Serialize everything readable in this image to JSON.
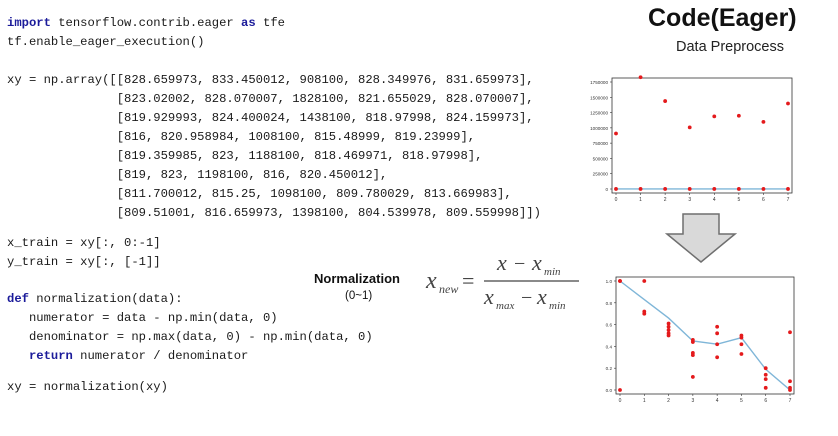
{
  "header": {
    "title": "Code(Eager)",
    "subtitle": "Data Preprocess"
  },
  "code": {
    "import_kw": "import",
    "import_mod": " tensorflow.contrib.eager ",
    "as_kw": "as",
    "import_alias": " tfe",
    "enable_line": "tf.enable_eager_execution()",
    "xy_lines": [
      "xy = np.array([[828.659973, 833.450012, 908100, 828.349976, 831.659973],",
      "               [823.02002, 828.070007, 1828100, 821.655029, 828.070007],",
      "               [819.929993, 824.400024, 1438100, 818.97998, 824.159973],",
      "               [816, 820.958984, 1008100, 815.48999, 819.23999],",
      "               [819.359985, 823, 1188100, 818.469971, 818.97998],",
      "               [819, 823, 1198100, 816, 820.450012],",
      "               [811.700012, 815.25, 1098100, 809.780029, 813.669983],",
      "               [809.51001, 816.659973, 1398100, 804.539978, 809.559998]])"
    ],
    "x_train": "x_train = xy[:, 0:-1]",
    "y_train": "y_train = xy[:, [-1]]",
    "def_kw": "def",
    "def_sig": " normalization(data):",
    "numerator": "   numerator = data - np.min(data, 0)",
    "denominator": "   denominator = np.max(data, 0) - np.min(data, 0)",
    "return_kw": "   return",
    "return_rest": " numerator / denominator",
    "call_line": "xy = normalization(xy)"
  },
  "normalization": {
    "label": "Normalization",
    "range": "(0~1)"
  },
  "formula": {
    "lhs_var": "x",
    "lhs_sub": "new",
    "num_var": "x",
    "minus": "−",
    "num_x2": "x",
    "sub_min": "min",
    "den_x": "x",
    "sub_max": "max"
  },
  "colors": {
    "keyword": "#1b1b9a",
    "points": "#e41a1c",
    "line": "#7fb6d8",
    "arrow_fill": "#d9d9d9",
    "arrow_stroke": "#6f6f6f"
  },
  "icons": {
    "arrow": "down-arrow-icon"
  },
  "chart_data": [
    {
      "type": "scatter",
      "title": "",
      "xlabel": "",
      "ylabel": "",
      "xlim": [
        0,
        7
      ],
      "ylim": [
        0,
        1750000
      ],
      "x_ticks": [
        "0",
        "1",
        "2",
        "3",
        "4",
        "5",
        "6",
        "7"
      ],
      "y_ticks": [
        "0",
        "250000",
        "500000",
        "750000",
        "1000000",
        "1250000",
        "1500000",
        "1750000"
      ],
      "series": [
        {
          "values": [
            908100,
            1828100,
            1438100,
            1008100,
            1188100,
            1198100,
            1098100,
            1398100
          ]
        },
        {
          "values": [
            828.66,
            833.45,
            828.35,
            831.66,
            823.02,
            828.07,
            821.66,
            819.93
          ]
        }
      ],
      "line": {
        "values": [
          831.66,
          828.07,
          824.16,
          819.24,
          818.98,
          820.45,
          813.67,
          809.56
        ]
      }
    },
    {
      "type": "scatter",
      "title": "",
      "xlabel": "",
      "ylabel": "",
      "xlim": [
        0,
        7
      ],
      "ylim": [
        0,
        1.0
      ],
      "x_ticks": [
        "0",
        "1",
        "2",
        "3",
        "4",
        "5",
        "6",
        "7"
      ],
      "y_ticks": [
        "0.0",
        "0.2",
        "0.4",
        "0.6",
        "0.8",
        "1.0"
      ],
      "points": [
        [
          0,
          1.0
        ],
        [
          0,
          0.0
        ],
        [
          0,
          1.0
        ],
        [
          1,
          1.0
        ],
        [
          1,
          0.72
        ],
        [
          1,
          0.7
        ],
        [
          2,
          0.61
        ],
        [
          2,
          0.58
        ],
        [
          2,
          0.55
        ],
        [
          2,
          0.52
        ],
        [
          2,
          0.5
        ],
        [
          3,
          0.46
        ],
        [
          3,
          0.34
        ],
        [
          3,
          0.32
        ],
        [
          3,
          0.12
        ],
        [
          3,
          0.44
        ],
        [
          4,
          0.58
        ],
        [
          4,
          0.52
        ],
        [
          4,
          0.42
        ],
        [
          4,
          0.3
        ],
        [
          5,
          0.5
        ],
        [
          5,
          0.42
        ],
        [
          5,
          0.33
        ],
        [
          5,
          0.48
        ],
        [
          6,
          0.2
        ],
        [
          6,
          0.14
        ],
        [
          6,
          0.1
        ],
        [
          6,
          0.02
        ],
        [
          7,
          0.53
        ],
        [
          7,
          0.08
        ],
        [
          7,
          0.02
        ],
        [
          7,
          0.0
        ]
      ],
      "line": {
        "values": [
          1.0,
          0.83,
          0.66,
          0.45,
          0.42,
          0.48,
          0.19,
          0.0
        ]
      }
    }
  ]
}
